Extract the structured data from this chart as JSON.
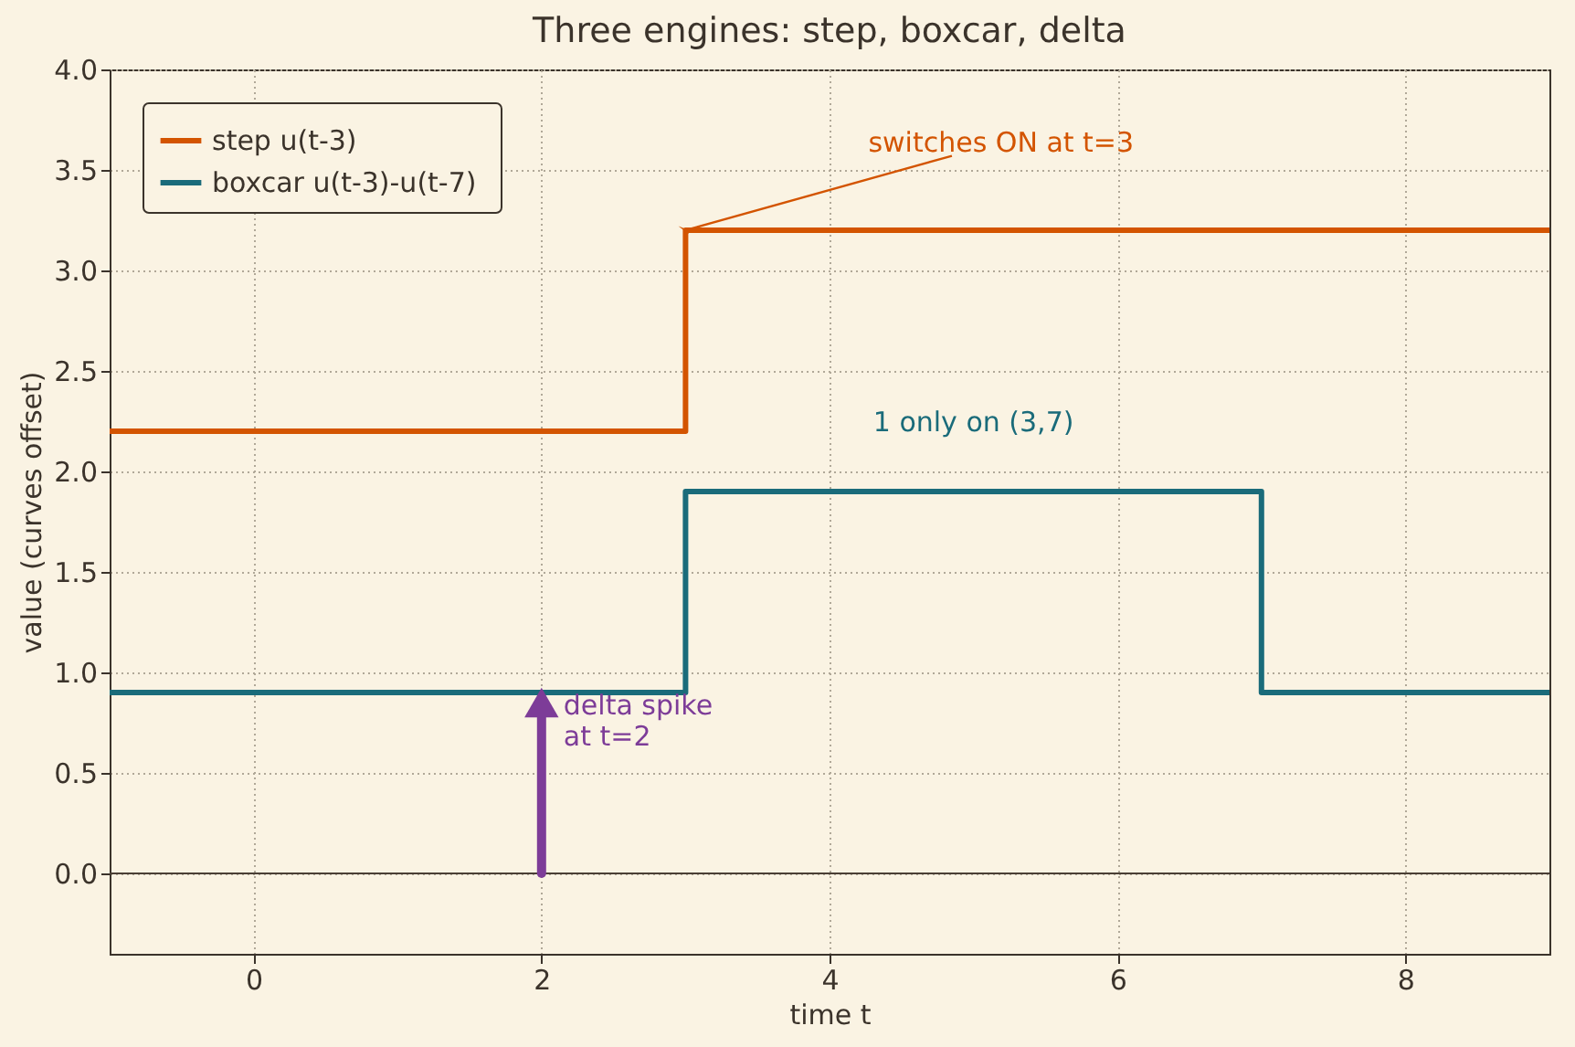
{
  "chart_data": {
    "type": "step",
    "title": "Three engines: step, boxcar, delta",
    "xlabel": "time  t",
    "ylabel": "value (curves offset)",
    "series": [
      {
        "name": "step  u(t-3)",
        "color": "#d35400",
        "x": [
          -1,
          3,
          9
        ],
        "values": [
          2.2,
          3.2,
          3.2
        ]
      },
      {
        "name": "boxcar  u(t-3)-u(t-7)",
        "color": "#1a6b7a",
        "x": [
          -1,
          3,
          7,
          9
        ],
        "values": [
          0.9,
          1.9,
          0.9,
          0.9
        ]
      },
      {
        "type": "line",
        "color": "#7d3c98",
        "x": [
          2,
          2
        ],
        "values": [
          0,
          0.85
        ],
        "marker": "triangle"
      }
    ],
    "xlim": [
      -1,
      9
    ],
    "xticks": [
      0,
      2,
      4,
      6,
      8
    ],
    "ylim": [
      -0.4,
      4.0
    ],
    "yticks": [
      {
        "value": 0,
        "label": "0.0"
      },
      0.5,
      {
        "value": 1,
        "label": "1.0"
      },
      1.5,
      {
        "value": 2,
        "label": "2.0"
      },
      2.5,
      {
        "value": 3,
        "label": "3.0"
      },
      3.5,
      {
        "value": 4,
        "label": "4.0"
      }
    ],
    "ref_lines": [
      {
        "axis": "y",
        "value": 0,
        "color": "#4a3f35"
      }
    ],
    "annotations": [
      {
        "text": "switches ON at t=3",
        "x": 3,
        "y": 3.2
      },
      {
        "text": "1 only on (3,7)",
        "x": 5,
        "y": 1.9
      },
      {
        "text": "delta spike\n at t=2",
        "x": 2,
        "y": 0.9
      }
    ],
    "grid": true,
    "legend": "top left",
    "line_style": "solid",
    "marker": "none"
  }
}
